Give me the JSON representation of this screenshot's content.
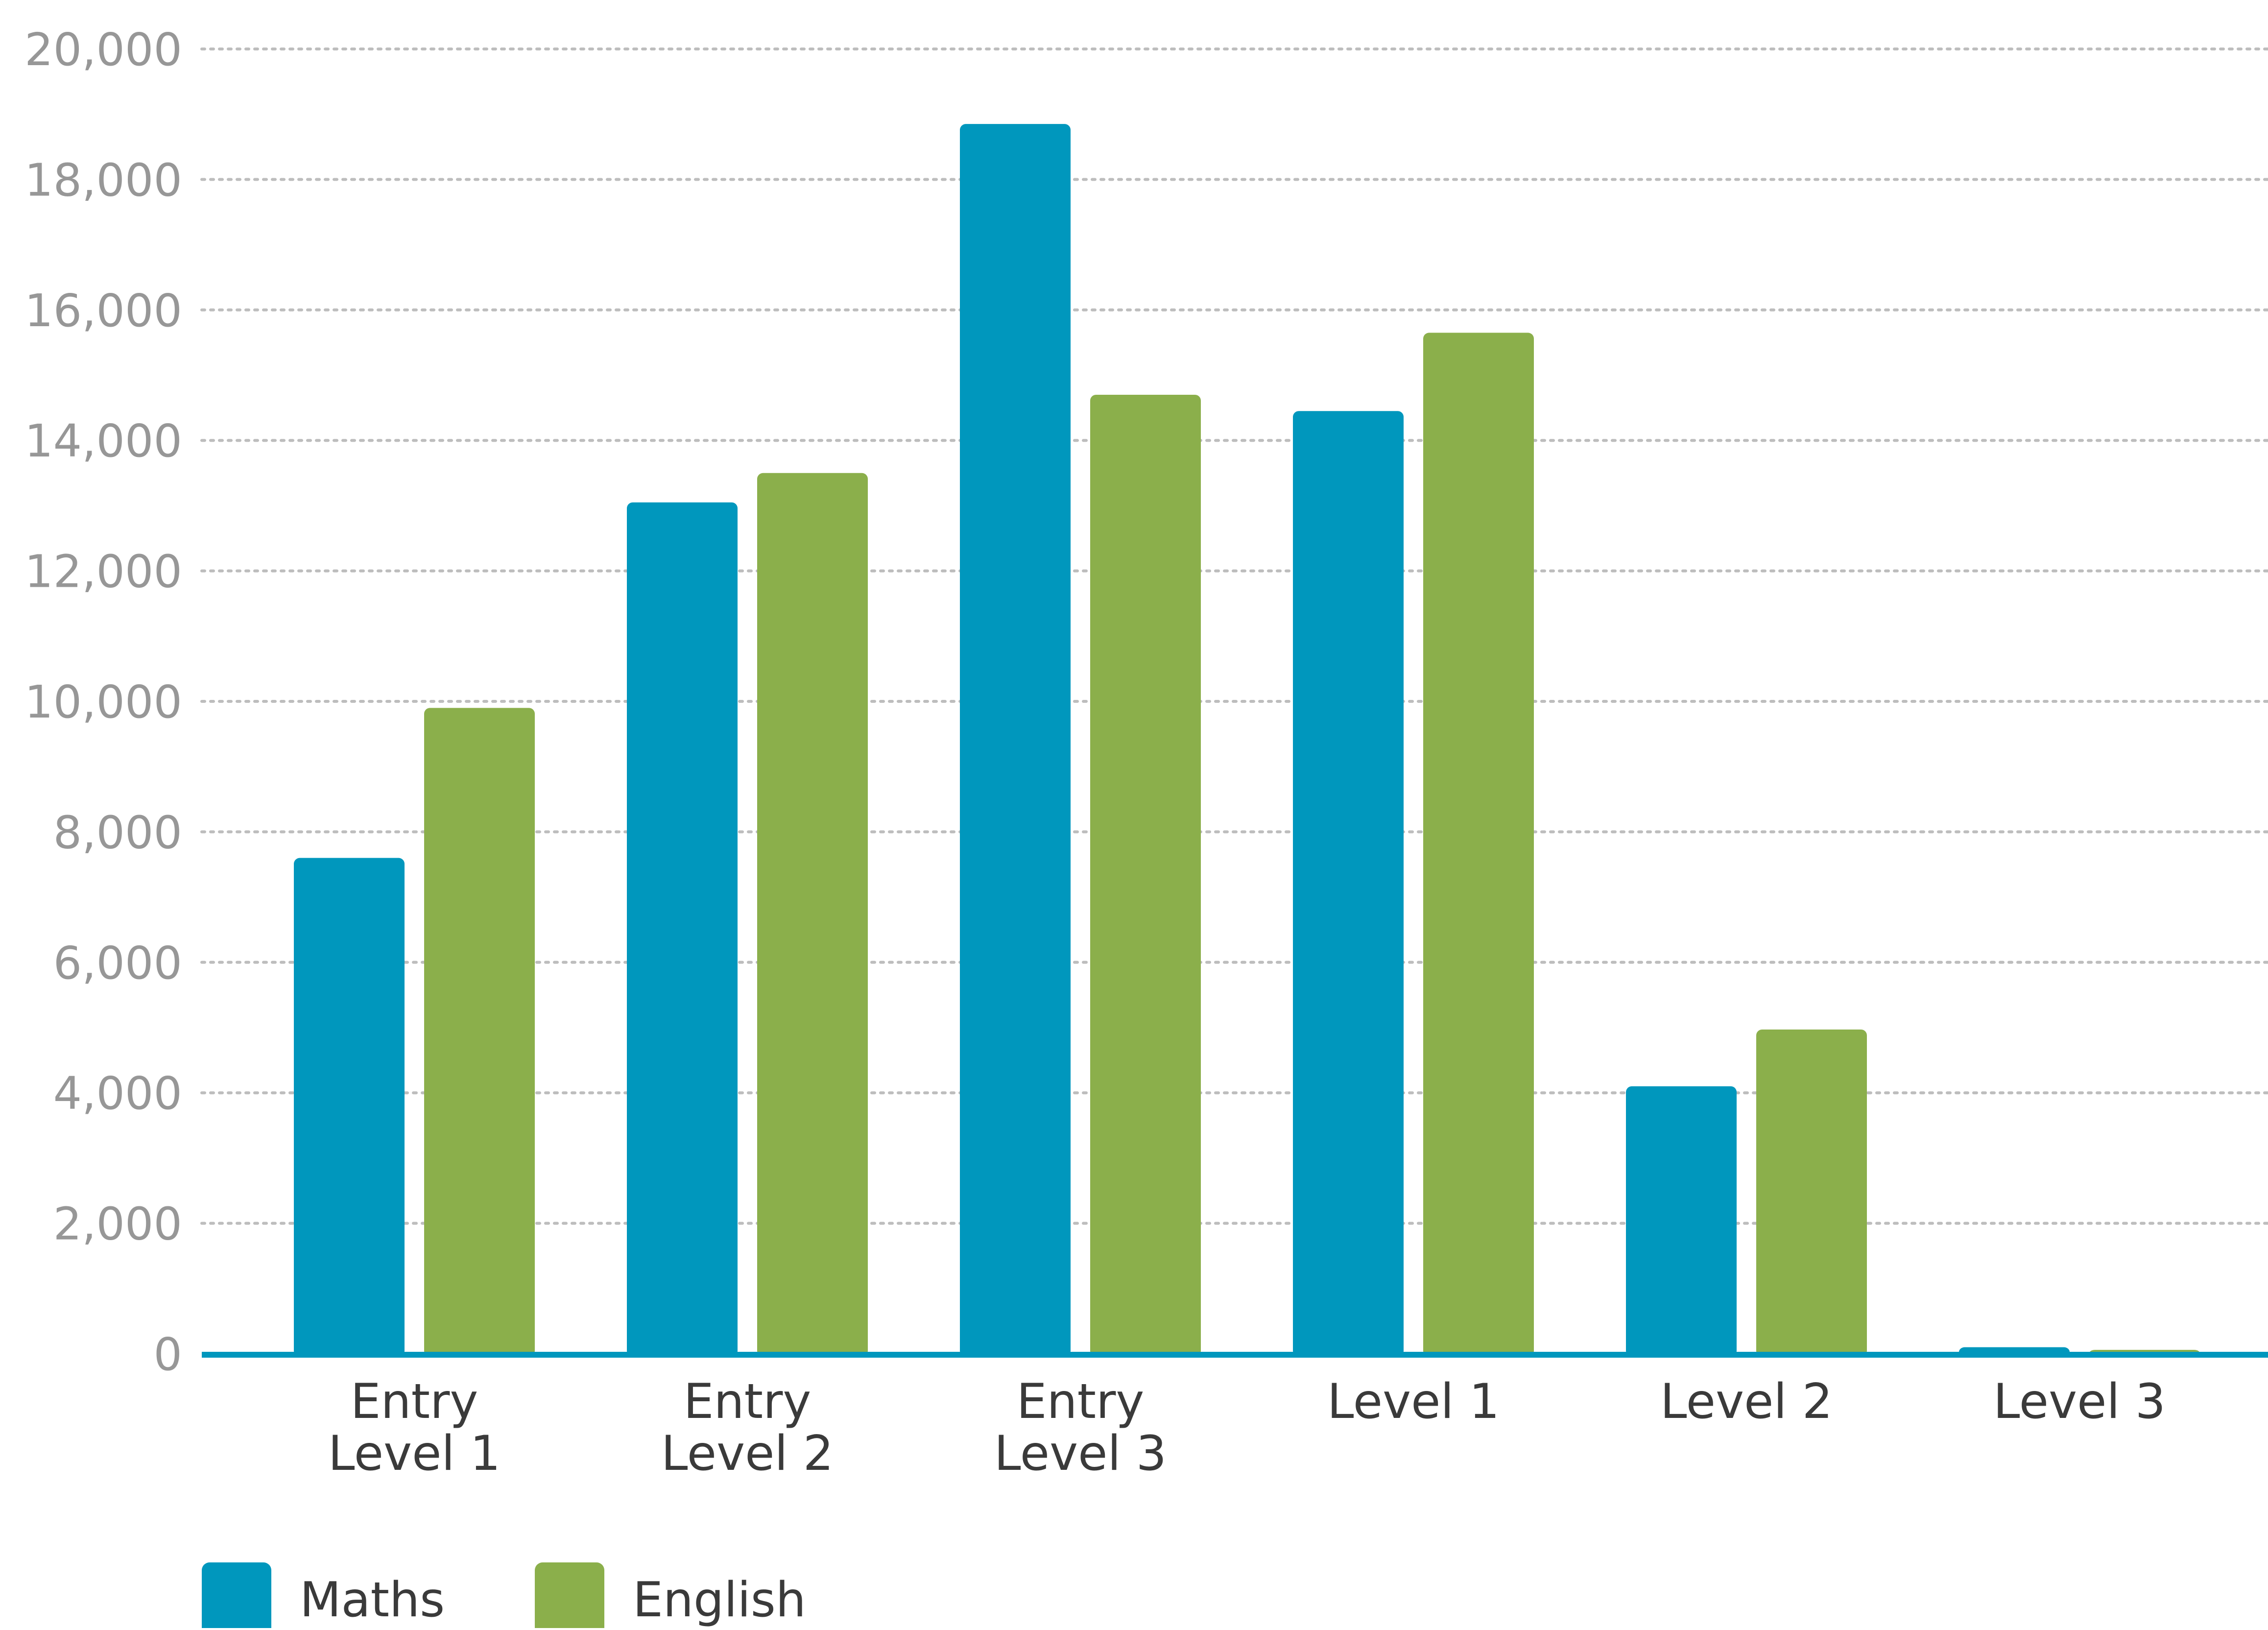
{
  "chart_data": {
    "type": "bar",
    "categories": [
      [
        "Entry",
        "Level 1"
      ],
      [
        "Entry",
        "Level 2"
      ],
      [
        "Entry",
        "Level 3"
      ],
      [
        "Level 1"
      ],
      [
        "Level 2"
      ],
      [
        "Level 3"
      ]
    ],
    "series": [
      {
        "name": "Maths",
        "color": "#0097bd",
        "values": [
          7600,
          13050,
          18850,
          14450,
          4100,
          100
        ]
      },
      {
        "name": "English",
        "color": "#8baf4b",
        "values": [
          9900,
          13500,
          14700,
          15650,
          4970,
          60
        ]
      }
    ],
    "ylim": [
      0,
      20000
    ],
    "yticks": [
      0,
      2000,
      4000,
      6000,
      8000,
      10000,
      12000,
      14000,
      16000,
      18000,
      20000
    ],
    "ytick_labels": [
      "0",
      "2,000",
      "4,000",
      "6,000",
      "8,000",
      "10,000",
      "12,000",
      "14,000",
      "16,000",
      "18,000",
      "20,000"
    ],
    "title": "",
    "xlabel": "",
    "ylabel": "",
    "grid": true,
    "legend_position": "bottom-left",
    "axis_color": "#0097bd",
    "grid_color": "#bdbdbd"
  }
}
